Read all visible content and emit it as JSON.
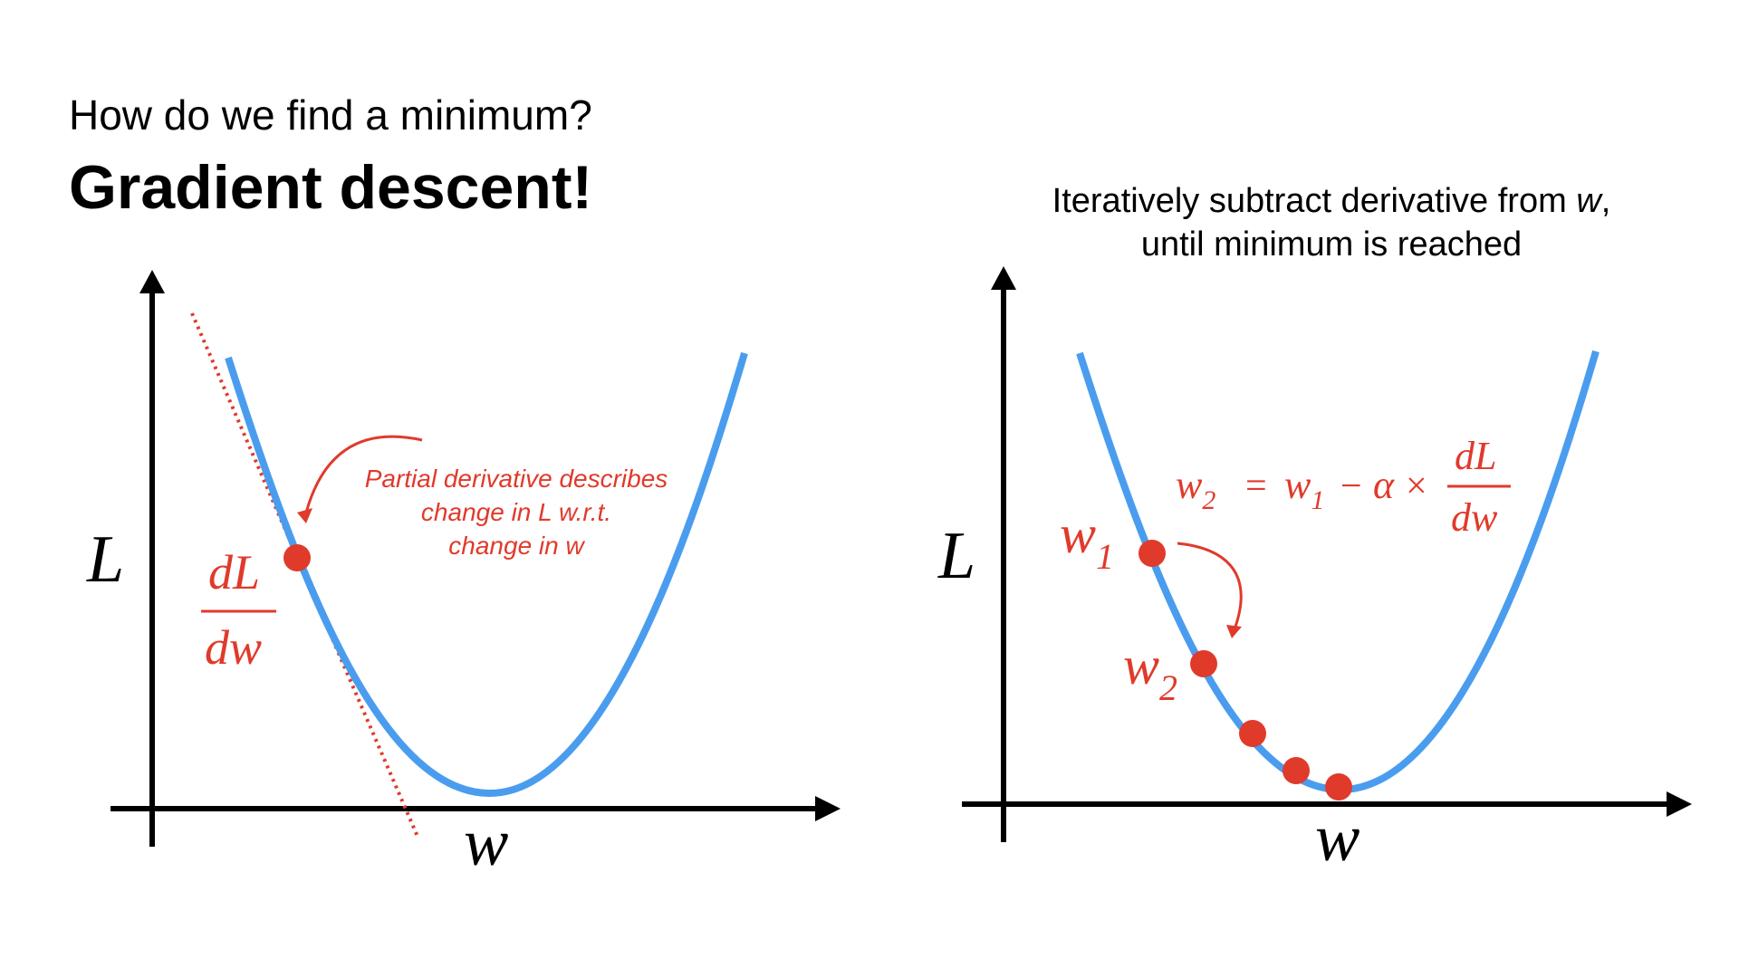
{
  "header": {
    "subtitle": "How do we find a minimum?",
    "title": "Gradient descent!"
  },
  "right_caption": {
    "line1_prefix": "Iteratively subtract derivative from ",
    "line1_var": "w",
    "line1_suffix": ",",
    "line2": "until minimum is reached"
  },
  "left_plot": {
    "y_axis_label": "L",
    "x_axis_label": "w",
    "derivative_numerator": "dL",
    "derivative_denominator": "dw",
    "annotation_lines": [
      "Partial derivative describes",
      "change in L w.r.t.",
      "change in w"
    ]
  },
  "right_plot": {
    "y_axis_label": "L",
    "x_axis_label": "w",
    "point1_label": "w",
    "point1_sub": "1",
    "point2_label": "w",
    "point2_sub": "2",
    "formula": {
      "lhs_var": "w",
      "lhs_sub": "2",
      "equals": "=",
      "rhs_var": "w",
      "rhs_sub": "1",
      "minus": "−",
      "alpha": "α",
      "times": "×",
      "frac_num": "dL",
      "frac_den": "dw"
    }
  },
  "colors": {
    "curve": "#4A9DEE",
    "accent": "#E03A2B",
    "axis": "#000000"
  }
}
